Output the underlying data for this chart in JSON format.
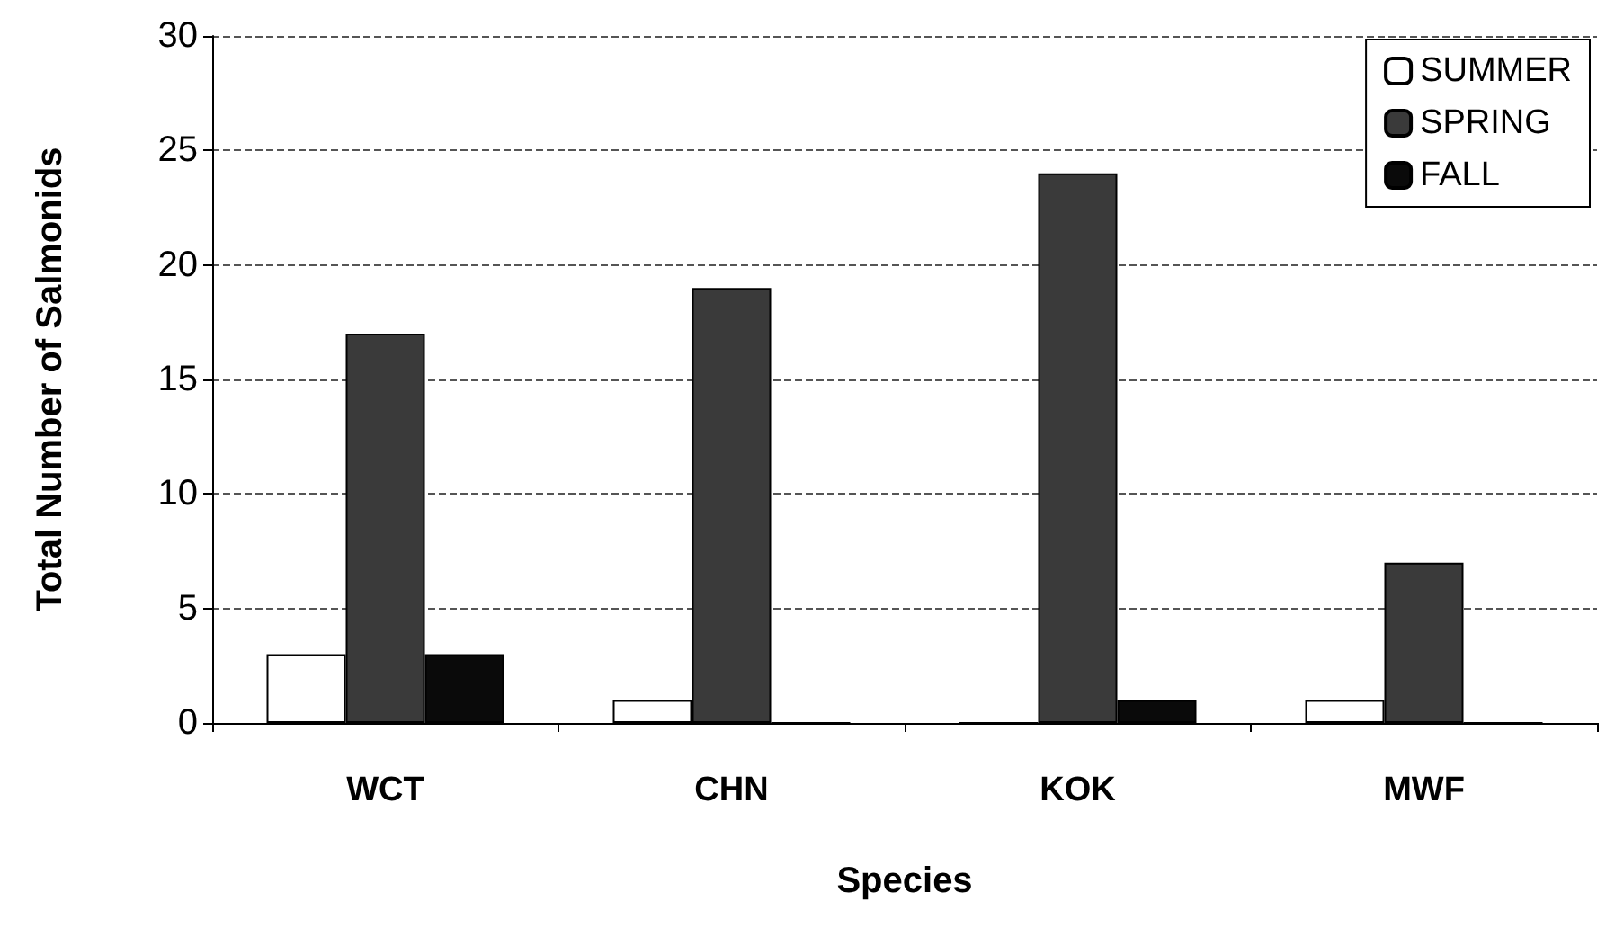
{
  "chart_data": {
    "type": "bar",
    "xlabel": "Species",
    "ylabel": "Total Number of Salmonids",
    "categories": [
      "WCT",
      "CHN",
      "KOK",
      "MWF"
    ],
    "series": [
      {
        "name": "SUMMER",
        "color": "#ffffff",
        "values": [
          3,
          1,
          0,
          1
        ]
      },
      {
        "name": "SPRING",
        "color": "#3a3a3a",
        "values": [
          17,
          19,
          24,
          7
        ]
      },
      {
        "name": "FALL",
        "color": "#0a0a0a",
        "values": [
          3,
          0,
          1,
          0
        ]
      }
    ],
    "ylim": [
      0,
      30
    ],
    "yticks": [
      0,
      5,
      10,
      15,
      20,
      25,
      30
    ],
    "grid": "y",
    "legend": "top right"
  }
}
